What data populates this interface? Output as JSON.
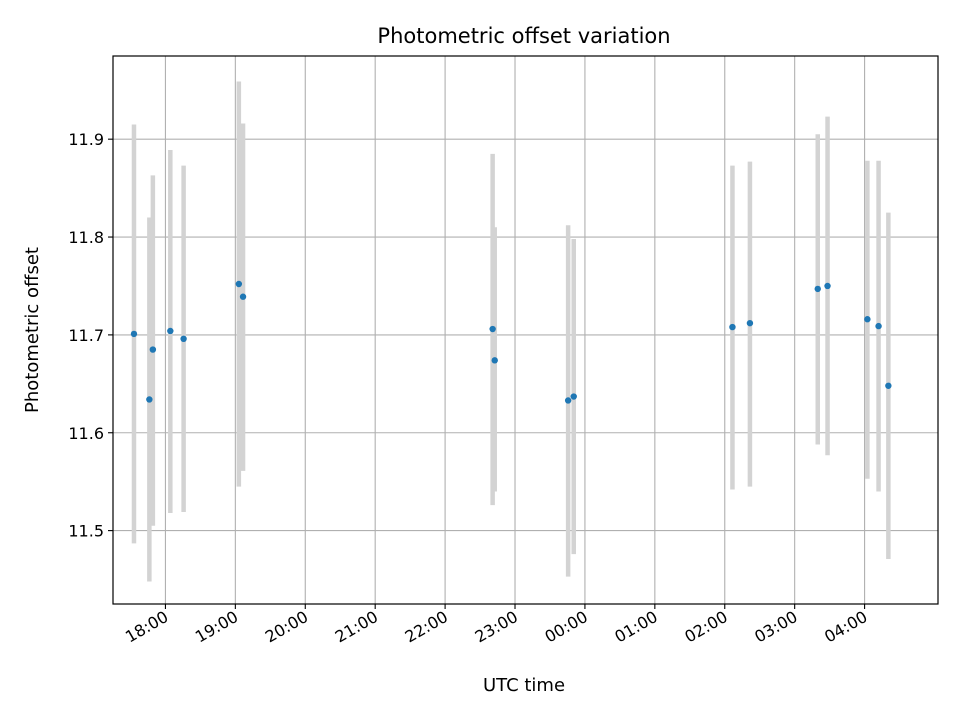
{
  "chart_data": {
    "type": "scatter",
    "title": "Photometric offset variation",
    "xlabel": "UTC time",
    "ylabel": "Photometric offset",
    "grid": true,
    "x_ticks": [
      {
        "label": "18:00",
        "hour": 18
      },
      {
        "label": "19:00",
        "hour": 19
      },
      {
        "label": "20:00",
        "hour": 20
      },
      {
        "label": "21:00",
        "hour": 21
      },
      {
        "label": "22:00",
        "hour": 22
      },
      {
        "label": "23:00",
        "hour": 23
      },
      {
        "label": "00:00",
        "hour": 24
      },
      {
        "label": "01:00",
        "hour": 25
      },
      {
        "label": "02:00",
        "hour": 26
      },
      {
        "label": "03:00",
        "hour": 27
      },
      {
        "label": "04:00",
        "hour": 28
      }
    ],
    "xlim": [
      17.25,
      29.05
    ],
    "ylim": [
      11.425,
      11.985
    ],
    "y_ticks": [
      11.5,
      11.6,
      11.7,
      11.8,
      11.9
    ],
    "point_color": "#1f77b4",
    "errorbar_color": "#d3d3d3",
    "points": [
      {
        "time": "17:33",
        "hour": 17.55,
        "y": 11.701,
        "ylow": 11.487,
        "yhigh": 11.915
      },
      {
        "time": "17:46",
        "hour": 17.77,
        "y": 11.634,
        "ylow": 11.448,
        "yhigh": 11.82
      },
      {
        "time": "17:49",
        "hour": 17.82,
        "y": 11.685,
        "ylow": 11.505,
        "yhigh": 11.863
      },
      {
        "time": "18:04",
        "hour": 18.07,
        "y": 11.704,
        "ylow": 11.518,
        "yhigh": 11.889
      },
      {
        "time": "18:16",
        "hour": 18.26,
        "y": 11.696,
        "ylow": 11.519,
        "yhigh": 11.873
      },
      {
        "time": "19:03",
        "hour": 19.05,
        "y": 11.752,
        "ylow": 11.545,
        "yhigh": 11.959
      },
      {
        "time": "19:07",
        "hour": 19.11,
        "y": 11.739,
        "ylow": 11.561,
        "yhigh": 11.916
      },
      {
        "time": "22:41",
        "hour": 22.68,
        "y": 11.706,
        "ylow": 11.526,
        "yhigh": 11.885
      },
      {
        "time": "22:42",
        "hour": 22.71,
        "y": 11.674,
        "ylow": 11.54,
        "yhigh": 11.81
      },
      {
        "time": "23:46",
        "hour": 23.76,
        "y": 11.633,
        "ylow": 11.453,
        "yhigh": 11.812
      },
      {
        "time": "23:51",
        "hour": 23.84,
        "y": 11.637,
        "ylow": 11.476,
        "yhigh": 11.798
      },
      {
        "time": "02:07",
        "hour": 26.11,
        "y": 11.708,
        "ylow": 11.542,
        "yhigh": 11.873
      },
      {
        "time": "02:21",
        "hour": 26.36,
        "y": 11.712,
        "ylow": 11.545,
        "yhigh": 11.877
      },
      {
        "time": "03:20",
        "hour": 27.33,
        "y": 11.747,
        "ylow": 11.588,
        "yhigh": 11.905
      },
      {
        "time": "03:28",
        "hour": 27.47,
        "y": 11.75,
        "ylow": 11.577,
        "yhigh": 11.923
      },
      {
        "time": "04:02",
        "hour": 28.04,
        "y": 11.716,
        "ylow": 11.553,
        "yhigh": 11.878
      },
      {
        "time": "04:12",
        "hour": 28.2,
        "y": 11.709,
        "ylow": 11.54,
        "yhigh": 11.878
      },
      {
        "time": "04:20",
        "hour": 28.34,
        "y": 11.648,
        "ylow": 11.471,
        "yhigh": 11.825
      }
    ]
  }
}
